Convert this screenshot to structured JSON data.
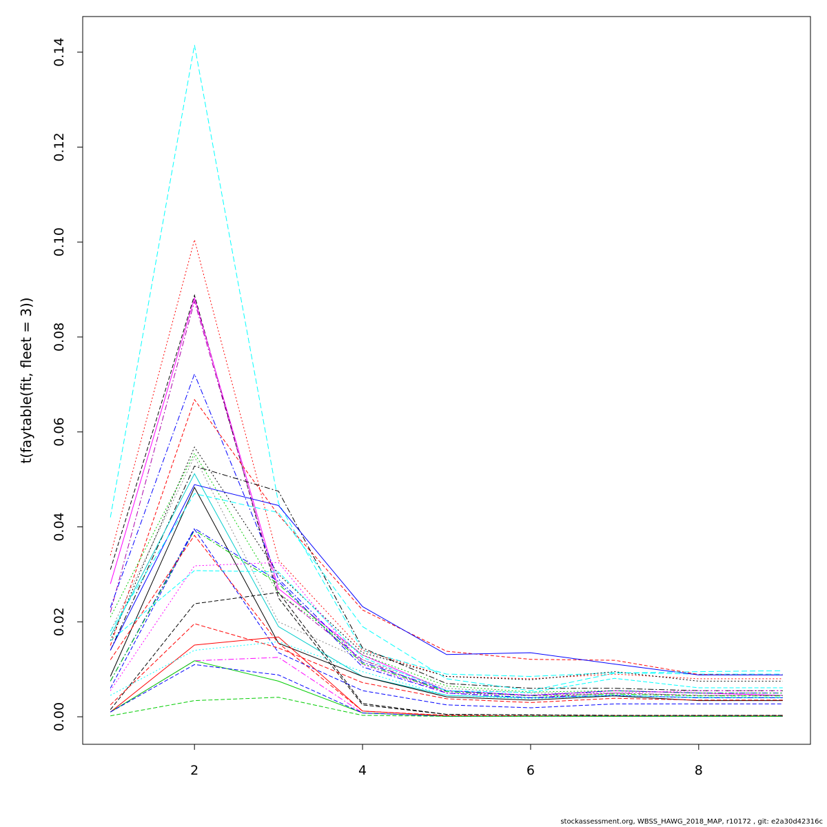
{
  "chart_data": {
    "type": "line",
    "title": "",
    "xlabel": "",
    "ylabel": "t(faytable(fit, fleet = 3))",
    "xlim": [
      0.67,
      9.33
    ],
    "ylim": [
      -0.0058,
      0.1475
    ],
    "grid": false,
    "legend": "none",
    "x": [
      1,
      2,
      3,
      4,
      5,
      6,
      7,
      8,
      9
    ],
    "x_ticks": [
      {
        "value": 2,
        "label": "2"
      },
      {
        "value": 4,
        "label": "4"
      },
      {
        "value": 6,
        "label": "6"
      },
      {
        "value": 8,
        "label": "8"
      }
    ],
    "y_ticks": [
      {
        "value": 0.0,
        "label": "0.00"
      },
      {
        "value": 0.02,
        "label": "0.02"
      },
      {
        "value": 0.04,
        "label": "0.04"
      },
      {
        "value": 0.06,
        "label": "0.06"
      },
      {
        "value": 0.08,
        "label": "0.08"
      },
      {
        "value": 0.1,
        "label": "0.10"
      },
      {
        "value": 0.12,
        "label": "0.12"
      },
      {
        "value": 0.14,
        "label": "0.14"
      }
    ],
    "series": [
      {
        "color": "#00ffff",
        "dash": "8,4",
        "values": [
          0.042,
          0.1415,
          0.045,
          0.014,
          0.009,
          0.0085,
          0.0093,
          0.009,
          0.009
        ]
      },
      {
        "color": "#ff0000",
        "dash": "2,3",
        "values": [
          0.034,
          0.1005,
          0.033,
          0.014,
          0.0085,
          0.008,
          0.009,
          0.008,
          0.008
        ]
      },
      {
        "color": "#000000",
        "dash": "6,3",
        "values": [
          0.031,
          0.0888,
          0.025,
          0.0025,
          0.0005,
          0.0004,
          0.0003,
          0.0003,
          0.0003
        ]
      },
      {
        "color": "#ff00ff",
        "dash": "",
        "values": [
          0.028,
          0.0882,
          0.027,
          0.013,
          0.0055,
          0.0045,
          0.0055,
          0.005,
          0.0045
        ]
      },
      {
        "color": "#aa00aa",
        "dash": "8,3,2,3",
        "values": [
          0.022,
          0.0875,
          0.026,
          0.012,
          0.005,
          0.004,
          0.005,
          0.0045,
          0.0045
        ]
      },
      {
        "color": "#0000ff",
        "dash": "8,3,2,3",
        "values": [
          0.023,
          0.0722,
          0.029,
          0.0115,
          0.0055,
          0.0045,
          0.0055,
          0.005,
          0.005
        ]
      },
      {
        "color": "#ff0000",
        "dash": "5,3",
        "values": [
          0.015,
          0.0668,
          0.0425,
          0.0225,
          0.0138,
          0.0121,
          0.0119,
          0.0089,
          0.0088
        ]
      },
      {
        "color": "#000000",
        "dash": "2,3",
        "values": [
          0.016,
          0.0568,
          0.03,
          0.0135,
          0.0085,
          0.0078,
          0.0095,
          0.0075,
          0.0075
        ]
      },
      {
        "color": "#00cc00",
        "dash": "2,3",
        "values": [
          0.021,
          0.0555,
          0.026,
          0.013,
          0.0065,
          0.0052,
          0.0055,
          0.005,
          0.005
        ]
      },
      {
        "color": "#888888",
        "dash": "2,3",
        "values": [
          0.018,
          0.0548,
          0.02,
          0.012,
          0.006,
          0.005,
          0.005,
          0.0045,
          0.0045
        ]
      },
      {
        "color": "#000000",
        "dash": "8,3,2,3",
        "values": [
          0.014,
          0.0528,
          0.0475,
          0.0145,
          0.007,
          0.006,
          0.006,
          0.0055,
          0.0055
        ]
      },
      {
        "color": "#00cccc",
        "dash": "",
        "values": [
          0.017,
          0.0512,
          0.019,
          0.0085,
          0.0045,
          0.004,
          0.0045,
          0.004,
          0.004
        ]
      },
      {
        "color": "#0000ff",
        "dash": "",
        "values": [
          0.014,
          0.0489,
          0.0445,
          0.0232,
          0.0131,
          0.0135,
          0.0111,
          0.0088,
          0.0088
        ]
      },
      {
        "color": "#000000",
        "dash": "",
        "values": [
          0.0085,
          0.0483,
          0.0155,
          0.0085,
          0.0042,
          0.0035,
          0.0044,
          0.0034,
          0.0034
        ]
      },
      {
        "color": "#00ffff",
        "dash": "8,4",
        "values": [
          0.018,
          0.047,
          0.043,
          0.019,
          0.008,
          0.0055,
          0.0092,
          0.0095,
          0.0097
        ]
      },
      {
        "color": "#0000ff",
        "dash": "8,3,2,3",
        "values": [
          0.0075,
          0.0397,
          0.0285,
          0.0105,
          0.005,
          0.004,
          0.0045,
          0.004,
          0.004
        ]
      },
      {
        "color": "#00cc00",
        "dash": "8,3,2,3",
        "values": [
          0.0075,
          0.0393,
          0.028,
          0.0112,
          0.0053,
          0.0044,
          0.0048,
          0.0044,
          0.0044
        ]
      },
      {
        "color": "#0000ff",
        "dash": "6,3",
        "values": [
          0.006,
          0.0395,
          0.0135,
          0.0055,
          0.0025,
          0.0019,
          0.0027,
          0.0027,
          0.0027
        ]
      },
      {
        "color": "#ff0000",
        "dash": "6,3",
        "values": [
          0.012,
          0.0382,
          0.0155,
          0.0012,
          0.0003,
          0.0002,
          0.0002,
          0.0002,
          0.0002
        ]
      },
      {
        "color": "#ff00ff",
        "dash": "2,3",
        "values": [
          0.0055,
          0.0318,
          0.0325,
          0.011,
          0.005,
          0.0045,
          0.005,
          0.0055,
          0.0055
        ]
      },
      {
        "color": "#00ffff",
        "dash": "6,3",
        "values": [
          0.016,
          0.0308,
          0.0305,
          0.0125,
          0.0055,
          0.0051,
          0.0081,
          0.0061,
          0.0061
        ]
      },
      {
        "color": "#000000",
        "dash": "6,3",
        "values": [
          0.0015,
          0.0238,
          0.0262,
          0.0028,
          0.0005,
          0.0004,
          0.0003,
          0.0003,
          0.0003
        ]
      },
      {
        "color": "#ff0000",
        "dash": "6,3",
        "values": [
          0.0025,
          0.0196,
          0.0145,
          0.0072,
          0.0038,
          0.003,
          0.0039,
          0.0035,
          0.0035
        ]
      },
      {
        "color": "#ff0000",
        "dash": "",
        "values": [
          0.001,
          0.0151,
          0.0168,
          0.0012,
          0.0002,
          0.0001,
          0.0001,
          0.0001,
          0.0001
        ]
      },
      {
        "color": "#00ffff",
        "dash": "2,3",
        "values": [
          0.0045,
          0.014,
          0.0158,
          0.0095,
          0.0045,
          0.0038,
          0.0045,
          0.0041,
          0.0041
        ]
      },
      {
        "color": "#ff00ff",
        "dash": "8,3,2,3",
        "values": [
          0.001,
          0.0118,
          0.0125,
          0.0008,
          0.0001,
          0.0001,
          0.0001,
          0.0001,
          0.0001
        ]
      },
      {
        "color": "#00cc00",
        "dash": "",
        "values": [
          0.001,
          0.0118,
          0.0075,
          0.0008,
          0.0001,
          0.0001,
          0.0001,
          0.0001,
          0.0001
        ]
      },
      {
        "color": "#0000ff",
        "dash": "6,3",
        "values": [
          0.001,
          0.011,
          0.0088,
          0.0008,
          0.0001,
          0.0001,
          0.0001,
          0.0001,
          0.0001
        ]
      },
      {
        "color": "#00cc00",
        "dash": "6,3",
        "values": [
          0.0002,
          0.0034,
          0.0041,
          0.0003,
          0.0001,
          0.0001,
          0.0001,
          0.0001,
          0.0001
        ]
      }
    ]
  },
  "footer": {
    "text": "stockassessment.org, WBSS_HAWG_2018_MAP, r10172 , git: e2a30d42316c"
  }
}
